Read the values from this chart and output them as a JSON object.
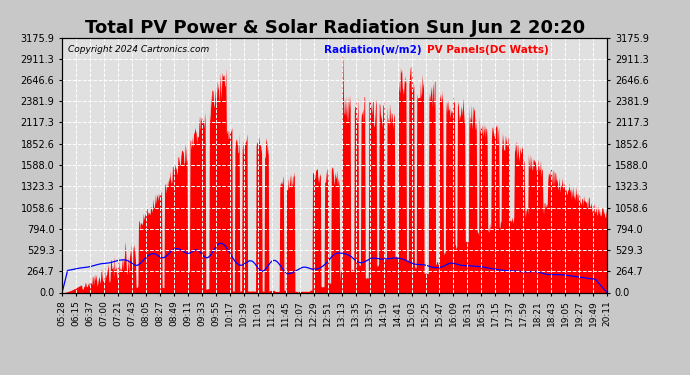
{
  "title": "Total PV Power & Solar Radiation Sun Jun 2 20:20",
  "copyright": "Copyright 2024 Cartronics.com",
  "legend_radiation": "Radiation(w/m2)",
  "legend_panels": "PV Panels(DC Watts)",
  "legend_radiation_color": "blue",
  "legend_panels_color": "red",
  "ymax": 3175.9,
  "yticks": [
    0.0,
    264.7,
    529.3,
    794.0,
    1058.6,
    1323.3,
    1588.0,
    1852.6,
    2117.3,
    2381.9,
    2646.6,
    2911.3,
    3175.9
  ],
  "background_color": "#c8c8c8",
  "plot_background": "#e0e0e0",
  "grid_color": "#aaaaaa",
  "pv_color": "red",
  "radiation_color": "blue",
  "title_fontsize": 13,
  "tick_fontsize": 7,
  "xtick_labels": [
    "05:28",
    "06:15",
    "06:37",
    "07:00",
    "07:21",
    "07:43",
    "08:05",
    "08:27",
    "08:49",
    "09:11",
    "09:33",
    "09:55",
    "10:17",
    "10:39",
    "11:01",
    "11:23",
    "11:45",
    "12:07",
    "12:29",
    "12:51",
    "13:13",
    "13:35",
    "13:57",
    "14:19",
    "14:41",
    "15:03",
    "15:25",
    "15:47",
    "16:09",
    "16:31",
    "16:53",
    "17:15",
    "17:37",
    "17:59",
    "18:21",
    "18:43",
    "19:05",
    "19:27",
    "19:49",
    "20:11"
  ]
}
